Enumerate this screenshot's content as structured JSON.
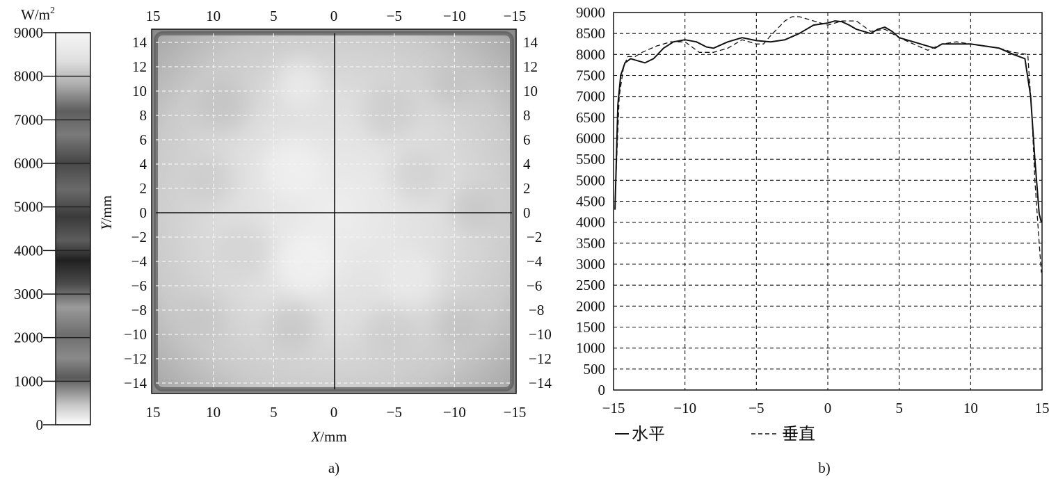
{
  "chart_data": [
    {
      "type": "heatmap",
      "panel_label": "a)",
      "colorbar": {
        "unit_base": "W/m",
        "unit_exp": "2",
        "ticks": [
          "9000",
          "8000",
          "7000",
          "6000",
          "5000",
          "4000",
          "3000",
          "2000",
          "1000",
          "0"
        ],
        "range": [
          0,
          9000
        ]
      },
      "xlabel_var": "X",
      "xlabel_unit": "/mm",
      "ylabel_var": "Y",
      "ylabel_unit": "/mm",
      "x_ticks": [
        "15",
        "10",
        "5",
        "0",
        "−5",
        "−10",
        "−15"
      ],
      "y_ticks": [
        "14",
        "12",
        "10",
        "8",
        "6",
        "4",
        "2",
        "0",
        "−2",
        "−4",
        "−6",
        "−8",
        "−10",
        "−12",
        "−14"
      ],
      "xlim": [
        15,
        -15
      ],
      "ylim": [
        -15,
        15
      ],
      "grid": true,
      "crosshair": true
    },
    {
      "type": "line",
      "panel_label": "b)",
      "xlim": [
        -15,
        15
      ],
      "ylim": [
        0,
        9000
      ],
      "x_ticks": [
        "−15",
        "−10",
        "−5",
        "0",
        "5",
        "10",
        "15"
      ],
      "y_ticks": [
        "9000",
        "8500",
        "8000",
        "7500",
        "7000",
        "6500",
        "6000",
        "5500",
        "5000",
        "4500",
        "4000",
        "3500",
        "3000",
        "2500",
        "2000",
        "1500",
        "1000",
        "500",
        "0"
      ],
      "grid": true,
      "legend_position": "bottom",
      "series": [
        {
          "name": "水平",
          "style": "solid",
          "x": [
            -14.9,
            -14.7,
            -14.5,
            -14.2,
            -13.8,
            -13.3,
            -12.8,
            -12.2,
            -11.5,
            -10.8,
            -10,
            -9.2,
            -8.5,
            -8,
            -7,
            -6,
            -5,
            -4,
            -3,
            -2,
            -1,
            0,
            0.5,
            1,
            1.5,
            2,
            3,
            3.5,
            4,
            4.5,
            5,
            6,
            7,
            7.5,
            8,
            9,
            10,
            11,
            12,
            13,
            13.8,
            14.2,
            14.5,
            14.8,
            14.95
          ],
          "y": [
            4300,
            6800,
            7500,
            7800,
            7900,
            7850,
            7800,
            7900,
            8150,
            8300,
            8350,
            8300,
            8180,
            8150,
            8300,
            8400,
            8330,
            8300,
            8350,
            8500,
            8700,
            8750,
            8800,
            8780,
            8700,
            8600,
            8500,
            8600,
            8650,
            8550,
            8400,
            8300,
            8200,
            8150,
            8250,
            8250,
            8250,
            8200,
            8150,
            8000,
            7900,
            7000,
            5500,
            4200,
            4000
          ]
        },
        {
          "name": "垂直",
          "style": "dashed",
          "x": [
            -14.9,
            -14.6,
            -14.3,
            -14,
            -13.5,
            -13,
            -12,
            -11,
            -10,
            -9,
            -8,
            -7,
            -6,
            -5,
            -4.5,
            -4,
            -3,
            -2.5,
            -2,
            -1,
            0,
            0.5,
            1,
            2,
            3,
            4,
            5,
            6,
            7,
            8,
            9,
            10,
            11,
            12,
            13,
            14,
            14.3,
            14.5,
            14.8,
            14.95
          ],
          "y": [
            4500,
            7000,
            7700,
            7950,
            7950,
            8050,
            8200,
            8300,
            8300,
            8050,
            8050,
            8150,
            8350,
            8250,
            8250,
            8450,
            8800,
            8900,
            8900,
            8800,
            8700,
            8750,
            8800,
            8800,
            8550,
            8600,
            8400,
            8250,
            8100,
            8250,
            8300,
            8250,
            8200,
            8150,
            8050,
            8000,
            6500,
            5000,
            3500,
            2800
          ]
        }
      ]
    }
  ]
}
